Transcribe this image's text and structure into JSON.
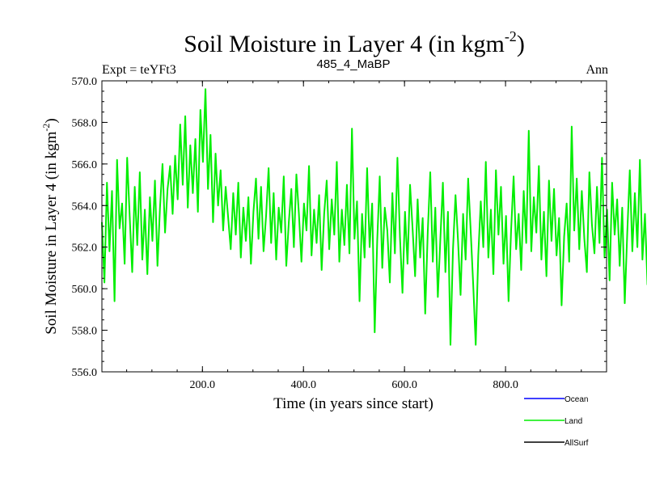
{
  "chart_data": {
    "type": "line",
    "title_main": "Soil Moisture in Layer 4 (in kgm",
    "title_sup": "-2",
    "title_close": ")",
    "subtitle_left": "Expt = teYFt3",
    "subtitle_center": "485_4_MaBP",
    "subtitle_right": "Ann",
    "xlabel": "Time (in years since start)",
    "ylabel_main": "Soil Moisture in Layer 4 (in kgm",
    "ylabel_sup": "-2",
    "ylabel_close": ")",
    "xlim": [
      1,
      1000
    ],
    "ylim": [
      556.0,
      570.0
    ],
    "x_ticks": [
      200,
      400,
      600,
      800
    ],
    "x_tick_labels": [
      "200.0",
      "400.0",
      "600.0",
      "800.0"
    ],
    "y_ticks": [
      556,
      558,
      560,
      562,
      564,
      566,
      568,
      570
    ],
    "y_tick_labels": [
      "556.0",
      "558.0",
      "560.0",
      "562.0",
      "564.0",
      "566.0",
      "568.0",
      "570.0"
    ],
    "legend": [
      {
        "name": "Ocean",
        "color": "#0000ff"
      },
      {
        "name": "Land",
        "color": "#00ee00"
      },
      {
        "name": "AllSurf",
        "color": "#000000"
      }
    ],
    "series": [
      {
        "name": "Land",
        "color": "#00ee00",
        "x_start": 1,
        "x_step": 5,
        "values": [
          563.2,
          560.3,
          565.1,
          561.8,
          564.7,
          559.4,
          566.2,
          562.9,
          564.1,
          561.2,
          566.3,
          563.5,
          560.8,
          564.9,
          562.1,
          565.6,
          561.4,
          563.8,
          560.7,
          564.4,
          562.3,
          565.2,
          561.1,
          563.9,
          566.0,
          562.7,
          564.8,
          565.9,
          563.6,
          566.4,
          564.3,
          567.9,
          565.0,
          568.3,
          563.9,
          566.9,
          564.6,
          567.2,
          563.7,
          568.6,
          566.1,
          569.6,
          564.8,
          567.4,
          563.2,
          566.5,
          564.0,
          565.7,
          562.8,
          564.9,
          563.4,
          561.9,
          564.6,
          562.6,
          565.1,
          561.5,
          563.9,
          562.3,
          564.4,
          561.2,
          563.7,
          565.3,
          562.4,
          564.9,
          561.8,
          563.5,
          565.8,
          562.2,
          564.6,
          561.4,
          563.9,
          562.7,
          565.4,
          561.1,
          563.2,
          564.8,
          562.0,
          565.5,
          563.6,
          561.3,
          564.1,
          562.8,
          565.9,
          561.6,
          563.8,
          562.2,
          564.5,
          560.9,
          563.6,
          565.2,
          561.9,
          564.3,
          562.6,
          566.1,
          561.3,
          563.8,
          562.1,
          565.0,
          561.7,
          567.7,
          562.4,
          564.2,
          559.4,
          563.6,
          561.5,
          565.8,
          562.0,
          564.1,
          557.9,
          562.3,
          565.4,
          561.0,
          563.9,
          562.8,
          560.3,
          564.6,
          561.7,
          566.3,
          562.5,
          559.8,
          563.7,
          561.2,
          565.0,
          562.9,
          560.6,
          564.3,
          561.5,
          563.4,
          558.8,
          562.7,
          565.6,
          561.3,
          563.9,
          559.6,
          562.4,
          565.1,
          560.8,
          563.7,
          557.3,
          561.9,
          564.5,
          562.3,
          559.7,
          563.6,
          561.4,
          565.3,
          562.8,
          560.2,
          557.3,
          561.6,
          564.2,
          562.0,
          566.1,
          561.5,
          563.8,
          560.7,
          565.7,
          562.6,
          564.9,
          561.2,
          563.5,
          559.4,
          562.8,
          565.4,
          561.9,
          563.6,
          560.9,
          564.7,
          562.2,
          567.6,
          561.8,
          564.4,
          562.7,
          565.9,
          561.4,
          563.7,
          560.6,
          565.2,
          562.3,
          564.8,
          561.6,
          563.4,
          559.2,
          562.5,
          564.1,
          561.3,
          567.8,
          562.8,
          565.3,
          561.9,
          564.7,
          562.4,
          560.8,
          565.6,
          563.1,
          561.7,
          564.9,
          562.2,
          566.3,
          561.5,
          563.8,
          560.4,
          565.1,
          562.6,
          564.3,
          561.1,
          563.9,
          559.3,
          562.7,
          565.7,
          561.8,
          564.6,
          562.0,
          566.2,
          561.4,
          563.6,
          560.2,
          564.8,
          562.5,
          561.3,
          564.4,
          561.9
        ]
      }
    ]
  }
}
